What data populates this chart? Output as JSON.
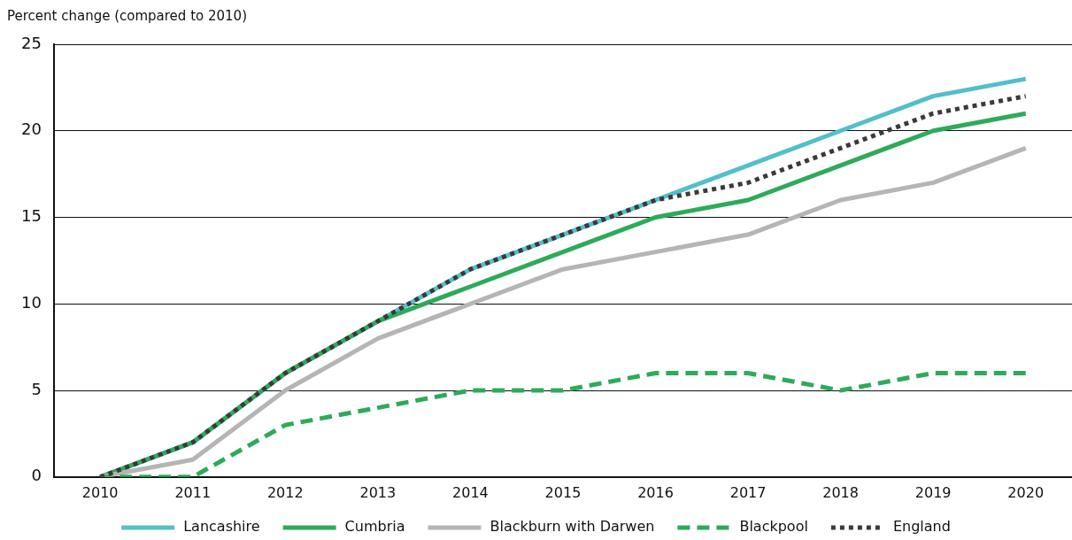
{
  "chart_data": {
    "type": "line",
    "ylabel": "Percent change (compared to 2010)",
    "categories": [
      "2010",
      "2011",
      "2012",
      "2013",
      "2014",
      "2015",
      "2016",
      "2017",
      "2018",
      "2019",
      "2020"
    ],
    "series": [
      {
        "name": "Lancashire",
        "color": "#52bfcb",
        "values": [
          0,
          2,
          6,
          9,
          12,
          14,
          16,
          18,
          20,
          22,
          23
        ]
      },
      {
        "name": "Cumbria",
        "color": "#2eaa5a",
        "values": [
          0,
          2,
          6,
          9,
          11,
          13,
          15,
          16,
          18,
          20,
          21
        ]
      },
      {
        "name": "Blackburn with Darwen",
        "color": "#b5b5b5",
        "values": [
          0,
          1,
          5,
          8,
          10,
          12,
          13,
          14,
          16,
          17,
          19
        ]
      },
      {
        "name": "Blackpool",
        "color": "#2eaa5a",
        "line_style": "dashed",
        "values": [
          0,
          0,
          3,
          4,
          5,
          5,
          6,
          6,
          5,
          6,
          6
        ]
      },
      {
        "name": "England",
        "color": "#3a3a3a",
        "line_style": "dotted",
        "values": [
          0,
          2,
          6,
          9,
          12,
          14,
          16,
          17,
          19,
          21,
          22
        ]
      }
    ],
    "ylim": [
      0,
      25
    ],
    "yticks": [
      0,
      5,
      10,
      15,
      20,
      25
    ],
    "grid": "y",
    "legend": "bottom",
    "marker": "none",
    "line_style": "solid"
  }
}
